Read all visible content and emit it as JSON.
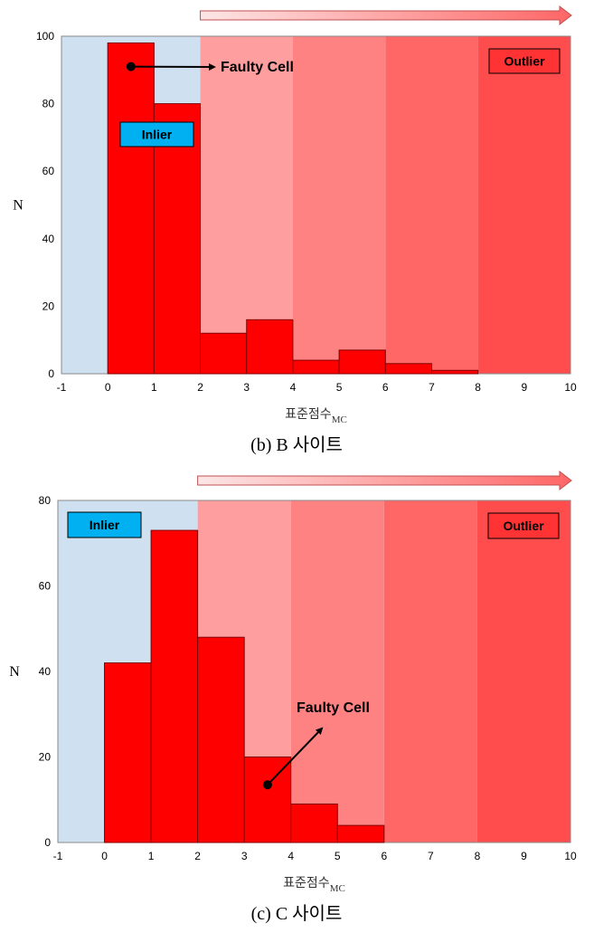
{
  "colors": {
    "inlier_bg": "#cfe0f0",
    "zone1": "#ff9e9e",
    "zone2": "#ff8282",
    "zone3": "#ff6666",
    "zone4": "#ff4d4d",
    "bar_fill": "#ff0000",
    "bar_stroke": "#800000",
    "inlier_box": "#00b0f0",
    "outlier_box": "#ff3333",
    "arrow_start": "#fde6e6",
    "arrow_end": "#ff6666"
  },
  "chart_data": [
    {
      "type": "bar",
      "caption": "(b) B  사이트",
      "ylabel": "N",
      "xlabel_main": "표준점수",
      "xlabel_sub": "MC",
      "xlim": [
        -1,
        10
      ],
      "ylim": [
        0,
        100
      ],
      "xticks": [
        -1,
        0,
        1,
        2,
        3,
        4,
        5,
        6,
        7,
        8,
        9,
        10
      ],
      "yticks": [
        0,
        20,
        40,
        60,
        80,
        100
      ],
      "bins": [
        [
          0,
          1
        ],
        [
          1,
          2
        ],
        [
          2,
          3
        ],
        [
          3,
          4
        ],
        [
          4,
          5
        ],
        [
          5,
          6
        ],
        [
          6,
          7
        ],
        [
          7,
          8
        ]
      ],
      "values": [
        98,
        80,
        12,
        16,
        4,
        7,
        3,
        1
      ],
      "zones": [
        [
          -1,
          2
        ],
        [
          2,
          4
        ],
        [
          4,
          6
        ],
        [
          6,
          8
        ],
        [
          8,
          10
        ]
      ],
      "inlier_label": "Inlier",
      "outlier_label": "Outlier",
      "faulty_label": "Faulty Cell",
      "faulty_point": [
        0.5,
        91
      ]
    },
    {
      "type": "bar",
      "caption": "(c)  C  사이트",
      "ylabel": "N",
      "xlabel_main": "표준점수",
      "xlabel_sub": "MC",
      "xlim": [
        -1,
        10
      ],
      "ylim": [
        0,
        80
      ],
      "xticks": [
        -1,
        0,
        1,
        2,
        3,
        4,
        5,
        6,
        7,
        8,
        9,
        10
      ],
      "yticks": [
        0,
        20,
        40,
        60,
        80
      ],
      "bins": [
        [
          0,
          1
        ],
        [
          1,
          2
        ],
        [
          2,
          3
        ],
        [
          3,
          4
        ],
        [
          4,
          5
        ],
        [
          5,
          6
        ]
      ],
      "values": [
        42,
        73,
        48,
        20,
        9,
        4
      ],
      "zones": [
        [
          -1,
          2
        ],
        [
          2,
          4
        ],
        [
          4,
          6
        ],
        [
          6,
          8
        ],
        [
          8,
          10
        ]
      ],
      "inlier_label": "Inlier",
      "outlier_label": "Outlier",
      "faulty_label": "Faulty Cell",
      "faulty_point": [
        3.5,
        13.5
      ]
    }
  ]
}
